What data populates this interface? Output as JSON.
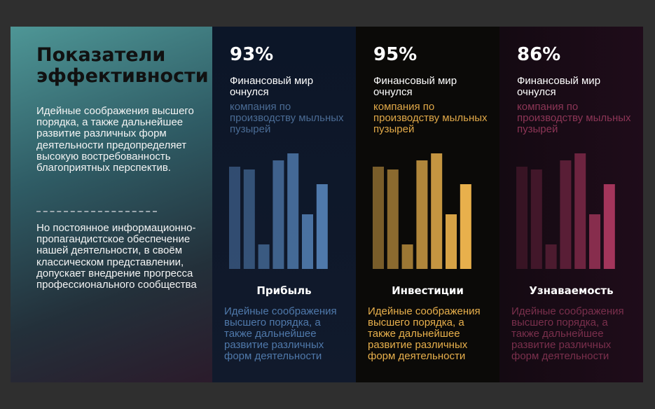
{
  "intro": {
    "title": "Показатели эффективности",
    "paragraph1": "Идейные соображения высшего порядка, а также дальнейшее развитие различных форм деятельности предопределяет высокую востребованность благоприятных перспектив.",
    "paragraph2": "Но постоянное информационно-пропагандистское обеспечение нашей деятельности, в своём классическом представлении, допускает внедрение прогресса профессионального сообщества"
  },
  "colors": {
    "blue": "#4f79ab",
    "gold": "#e8b04c",
    "pink": "#b23a63"
  },
  "chart_data": [
    {
      "type": "bar",
      "percent": "93%",
      "heading": "Финансовый мир очнулся",
      "subheading": "компания по производству мыльных пузырей",
      "category": "Прибыль",
      "description": "Идейные соображения высшего порядка, а также дальнейшее развитие различных форм деятельности",
      "color": "#4f79ab",
      "values": [
        146,
        142,
        35,
        155,
        165,
        78,
        121
      ],
      "ylim": [
        0,
        170
      ]
    },
    {
      "type": "bar",
      "percent": "95%",
      "heading": "Финансовый мир очнулся",
      "subheading": "компания по производству мыльных пузырей",
      "category": "Инвестиции",
      "description": "Идейные соображения высшего порядка, а также дальнейшее развитие различных форм деятельности",
      "color": "#e8b04c",
      "values": [
        146,
        142,
        35,
        155,
        165,
        78,
        121
      ],
      "ylim": [
        0,
        170
      ]
    },
    {
      "type": "bar",
      "percent": "86%",
      "heading": "Финансовый мир очнулся",
      "subheading": "компания по производству мыльных пузырей",
      "category": "Узнаваемость",
      "description": "Идейные соображения высшего порядка, а также дальнейшее развитие различных форм деятельности",
      "color": "#b23a63",
      "values": [
        146,
        142,
        35,
        155,
        165,
        78,
        121
      ],
      "ylim": [
        0,
        170
      ]
    }
  ]
}
